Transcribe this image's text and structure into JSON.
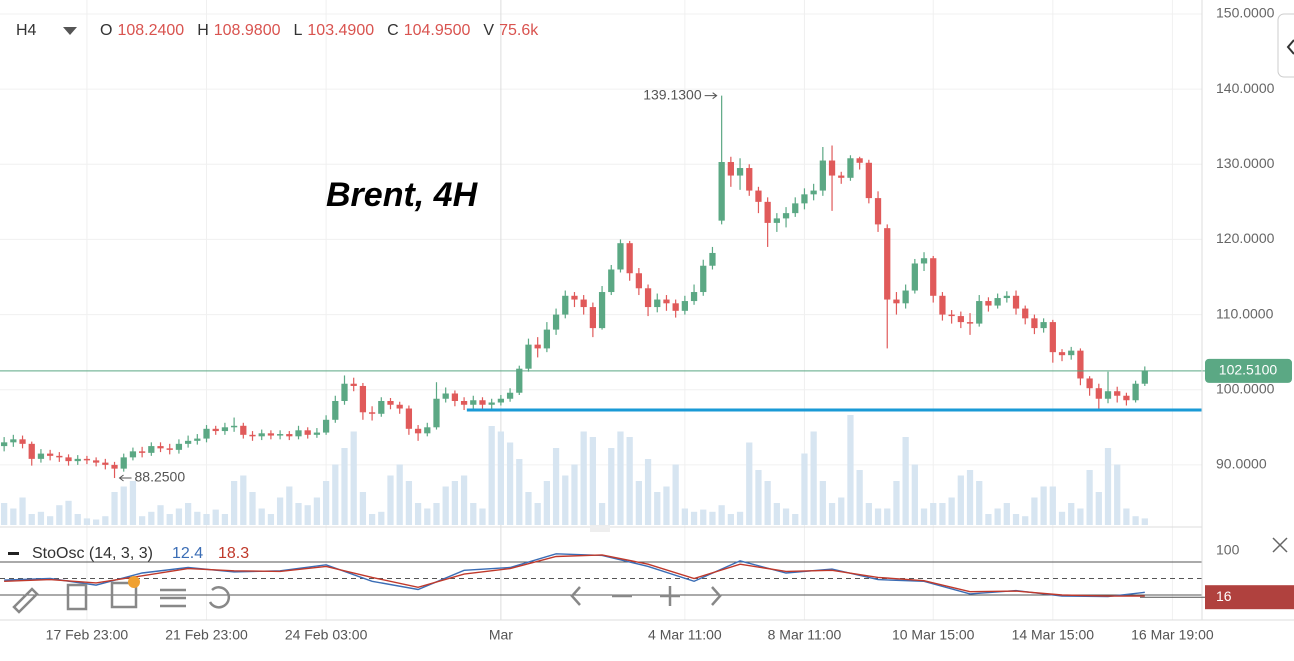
{
  "chart_data": {
    "type": "candlestick",
    "title": "Brent, 4H",
    "timeframe": "H4",
    "ohlc_header": [
      {
        "name": "O",
        "value": 108.24,
        "label": "108.2400"
      },
      {
        "name": "H",
        "value": 108.98,
        "label": "108.9800"
      },
      {
        "name": "L",
        "value": 103.49,
        "label": "103.4900"
      },
      {
        "name": "C",
        "value": 104.95,
        "label": "104.9500"
      },
      {
        "name": "V",
        "value": 75600,
        "label": "75.6k"
      }
    ],
    "open": [
      92.5,
      93.0,
      93.4,
      92.8,
      90.8,
      91.5,
      91.2,
      91.0,
      90.5,
      90.8,
      90.6,
      90.3,
      90.0,
      89.5,
      91.0,
      91.8,
      91.6,
      92.5,
      92.2,
      92.0,
      92.8,
      93.2,
      93.5,
      94.8,
      94.5,
      95.0,
      95.2,
      94.0,
      93.8,
      94.2,
      93.9,
      94.1,
      93.8,
      94.6,
      94.0,
      94.3,
      96.0,
      98.5,
      100.8,
      100.5,
      97.0,
      96.8,
      98.5,
      98.0,
      97.5,
      94.8,
      94.2,
      95.0,
      98.8,
      99.5,
      98.5,
      98.0,
      98.6,
      98.0,
      98.3,
      98.8,
      99.6,
      102.8,
      106.0,
      105.5,
      108.0,
      110.0,
      112.5,
      112.0,
      111.0,
      108.2,
      113.0,
      116.0,
      119.5,
      115.5,
      113.5,
      111.0,
      112.0,
      111.5,
      110.5,
      111.8,
      113.0,
      116.5,
      122.5,
      130.3,
      128.5,
      129.5,
      126.5,
      125.0,
      122.2,
      122.8,
      123.5,
      124.8,
      126.0,
      126.5,
      130.5,
      128.5,
      128.2,
      130.8,
      130.2,
      125.5,
      121.5,
      112.0,
      111.5,
      113.2,
      116.8,
      117.5,
      112.5,
      110.0,
      109.8,
      109.0,
      108.8,
      111.8,
      111.2,
      112.2,
      112.5,
      110.8,
      109.5,
      108.2,
      109.0,
      105.0,
      104.6,
      105.2,
      101.5,
      100.2,
      98.8,
      99.8,
      99.2,
      98.6,
      100.8
    ],
    "high": [
      93.7,
      94.0,
      93.9,
      93.1,
      92.1,
      92.0,
      91.7,
      91.4,
      91.3,
      91.2,
      91.0,
      90.8,
      90.4,
      91.5,
      92.3,
      92.4,
      93.0,
      93.0,
      92.8,
      93.4,
      93.9,
      94.1,
      95.3,
      95.2,
      95.6,
      96.3,
      95.6,
      94.5,
      94.7,
      94.6,
      94.6,
      94.5,
      95.2,
      95.0,
      94.9,
      96.6,
      99.2,
      101.9,
      101.6,
      100.9,
      97.8,
      99.0,
      98.9,
      98.4,
      97.9,
      95.3,
      95.6,
      101.0,
      100.3,
      99.9,
      99.0,
      99.2,
      99.0,
      98.8,
      99.3,
      100.2,
      103.2,
      106.8,
      107.0,
      109.0,
      110.8,
      113.2,
      113.0,
      112.6,
      111.6,
      113.8,
      116.6,
      120.0,
      119.8,
      116.2,
      114.0,
      112.8,
      112.6,
      112.0,
      112.5,
      114.0,
      117.3,
      119.0,
      139.13,
      131.0,
      130.8,
      130.0,
      127.0,
      125.6,
      123.5,
      124.3,
      125.6,
      126.8,
      127.4,
      132.3,
      132.5,
      129.0,
      131.2,
      131.0,
      130.6,
      126.4,
      122.0,
      113.0,
      114.0,
      117.4,
      118.3,
      117.8,
      113.0,
      110.6,
      110.4,
      110.2,
      112.6,
      112.3,
      112.8,
      113.1,
      113.2,
      111.2,
      110.0,
      109.5,
      109.3,
      105.4,
      105.7,
      105.5,
      101.8,
      100.8,
      102.4,
      100.4,
      99.6,
      101.2,
      103.1
    ],
    "low": [
      91.8,
      92.4,
      92.2,
      89.9,
      90.3,
      90.6,
      90.4,
      89.9,
      90.0,
      90.1,
      89.8,
      89.4,
      88.25,
      89.1,
      90.6,
      91.0,
      91.2,
      91.7,
      91.4,
      91.5,
      92.3,
      92.7,
      93.0,
      94.0,
      94.0,
      94.4,
      93.5,
      93.2,
      93.3,
      93.4,
      93.4,
      93.3,
      93.4,
      93.5,
      93.6,
      94.0,
      95.6,
      98.0,
      99.8,
      96.0,
      95.9,
      96.4,
      97.4,
      96.8,
      94.0,
      93.2,
      93.8,
      94.7,
      98.3,
      97.8,
      97.3,
      97.5,
      97.4,
      97.5,
      97.9,
      98.4,
      99.3,
      102.4,
      104.3,
      105.0,
      107.3,
      109.5,
      111.0,
      110.0,
      107.0,
      108.0,
      112.6,
      115.6,
      114.5,
      112.6,
      109.8,
      110.3,
      110.5,
      109.6,
      110.0,
      111.3,
      112.5,
      116.0,
      122.0,
      127.0,
      126.6,
      125.8,
      123.5,
      119.0,
      121.0,
      121.6,
      123.0,
      124.0,
      125.2,
      125.8,
      123.8,
      127.4,
      127.8,
      129.3,
      124.8,
      121.0,
      105.5,
      110.0,
      110.8,
      112.8,
      115.8,
      111.6,
      109.2,
      108.8,
      108.2,
      107.3,
      108.4,
      110.4,
      110.8,
      111.6,
      110.0,
      108.7,
      107.4,
      107.6,
      103.6,
      103.8,
      104.0,
      100.6,
      99.2,
      97.5,
      98.2,
      98.3,
      97.9,
      98.3,
      100.5
    ],
    "close": [
      93.0,
      93.4,
      92.8,
      90.8,
      91.5,
      91.2,
      91.0,
      90.5,
      90.8,
      90.6,
      90.3,
      90.0,
      89.5,
      91.0,
      91.8,
      91.6,
      92.5,
      92.2,
      92.0,
      92.8,
      93.2,
      93.5,
      94.8,
      94.5,
      95.0,
      95.2,
      94.0,
      93.8,
      94.2,
      93.9,
      94.1,
      93.8,
      94.6,
      94.0,
      94.3,
      96.0,
      98.5,
      100.8,
      100.5,
      97.0,
      96.8,
      98.5,
      98.0,
      97.5,
      94.8,
      94.2,
      95.0,
      98.8,
      99.5,
      98.5,
      98.0,
      98.6,
      98.0,
      98.3,
      98.8,
      99.6,
      102.8,
      106.0,
      105.5,
      108.0,
      110.0,
      112.5,
      112.0,
      111.0,
      108.2,
      113.0,
      116.0,
      119.5,
      115.5,
      113.5,
      111.0,
      112.0,
      111.5,
      110.5,
      111.8,
      113.0,
      116.5,
      118.2,
      130.3,
      128.5,
      129.5,
      126.5,
      125.0,
      122.2,
      122.8,
      123.5,
      124.8,
      126.0,
      126.5,
      130.5,
      128.5,
      128.2,
      130.8,
      130.2,
      125.5,
      122.0,
      112.0,
      111.5,
      113.2,
      116.8,
      117.5,
      112.5,
      110.0,
      109.8,
      109.0,
      108.8,
      111.8,
      111.2,
      112.2,
      112.5,
      110.8,
      109.5,
      108.2,
      109.0,
      105.0,
      104.6,
      105.2,
      101.5,
      100.2,
      98.8,
      99.8,
      99.2,
      98.6,
      100.8,
      102.51
    ],
    "volume": [
      20,
      15,
      25,
      10,
      12,
      8,
      18,
      22,
      10,
      6,
      5,
      8,
      30,
      35,
      40,
      8,
      12,
      18,
      10,
      15,
      20,
      12,
      10,
      14,
      10,
      40,
      45,
      30,
      15,
      10,
      25,
      35,
      20,
      18,
      25,
      40,
      55,
      70,
      85,
      30,
      10,
      12,
      45,
      55,
      40,
      20,
      15,
      20,
      35,
      40,
      45,
      20,
      15,
      90,
      85,
      75,
      60,
      30,
      20,
      40,
      70,
      45,
      55,
      85,
      80,
      20,
      70,
      85,
      80,
      40,
      60,
      30,
      35,
      55,
      15,
      12,
      14,
      12,
      18,
      10,
      12,
      75,
      50,
      40,
      20,
      15,
      10,
      65,
      85,
      40,
      20,
      25,
      100,
      50,
      20,
      15,
      15,
      40,
      80,
      55,
      15,
      20,
      20,
      25,
      45,
      50,
      40,
      10,
      15,
      20,
      10,
      8,
      25,
      35,
      35,
      12,
      20,
      15,
      50,
      30,
      70,
      55,
      15,
      8,
      6
    ],
    "volume_ylim": [
      0,
      100
    ],
    "ylim": [
      82,
      151.86
    ],
    "yticks": [
      {
        "value": 90,
        "label": "90.0000"
      },
      {
        "value": 100,
        "label": "100.0000"
      },
      {
        "value": 110,
        "label": "110.0000"
      },
      {
        "value": 120,
        "label": "120.0000"
      },
      {
        "value": 130,
        "label": "130.0000"
      },
      {
        "value": 140,
        "label": "140.0000"
      },
      {
        "value": 150,
        "label": "150.0000"
      }
    ],
    "xlim": [
      -0.45,
      130
    ],
    "xticks": [
      {
        "value": 9,
        "label": "17 Feb 23:00"
      },
      {
        "value": 22,
        "label": "21 Feb 23:00"
      },
      {
        "value": 35,
        "label": "24 Feb 03:00"
      },
      {
        "value": 54,
        "label": "Mar"
      },
      {
        "value": 74,
        "label": "4 Mar 11:00"
      },
      {
        "value": 87,
        "label": "8 Mar 11:00"
      },
      {
        "value": 101,
        "label": "10 Mar 15:00"
      },
      {
        "value": 114,
        "label": "14 Mar 15:00"
      },
      {
        "value": 127,
        "label": "16 Mar 19:00"
      }
    ],
    "grid": true,
    "colors": {
      "up": "#5ba884",
      "down": "#e05a5a",
      "volume": "#d7e5f1"
    },
    "last_price": {
      "value": 102.51,
      "label": "102.5100",
      "color": "#5ba884"
    },
    "support_level": {
      "value": 97.3,
      "from": 50.3,
      "color": "#1a9ad6"
    },
    "annotations": [
      {
        "index": 78,
        "value": 139.13,
        "label": "139.1300",
        "side": "left"
      },
      {
        "index": 12,
        "value": 88.25,
        "label": "88.2500",
        "side": "right"
      }
    ],
    "stochastic": {
      "name": "StoOsc (14, 3, 3)",
      "x": [
        0,
        5,
        10,
        15,
        20,
        25,
        30,
        35,
        40,
        45,
        50,
        55,
        60,
        65,
        70,
        75,
        80,
        85,
        90,
        95,
        100,
        105,
        110,
        115,
        120,
        124
      ],
      "series": [
        {
          "color": "#3b6db5",
          "current": 12.4,
          "values": [
            47,
            50,
            38,
            60,
            70,
            62,
            64,
            75,
            45,
            30,
            65,
            70,
            95,
            92,
            72,
            45,
            82,
            60,
            67,
            48,
            45,
            22,
            28,
            18,
            17,
            25
          ]
        },
        {
          "color": "#c0392b",
          "current": 18.3,
          "values": [
            45,
            48,
            42,
            55,
            68,
            64,
            63,
            72,
            52,
            34,
            58,
            68,
            90,
            93,
            76,
            50,
            76,
            63,
            65,
            52,
            46,
            26,
            27,
            20,
            18,
            18
          ]
        }
      ],
      "ylim": [
        0,
        100
      ],
      "yticks": [
        100
      ],
      "levels": [
        80,
        50,
        20
      ],
      "badge": 16,
      "badge_color": "#b0413e"
    }
  }
}
